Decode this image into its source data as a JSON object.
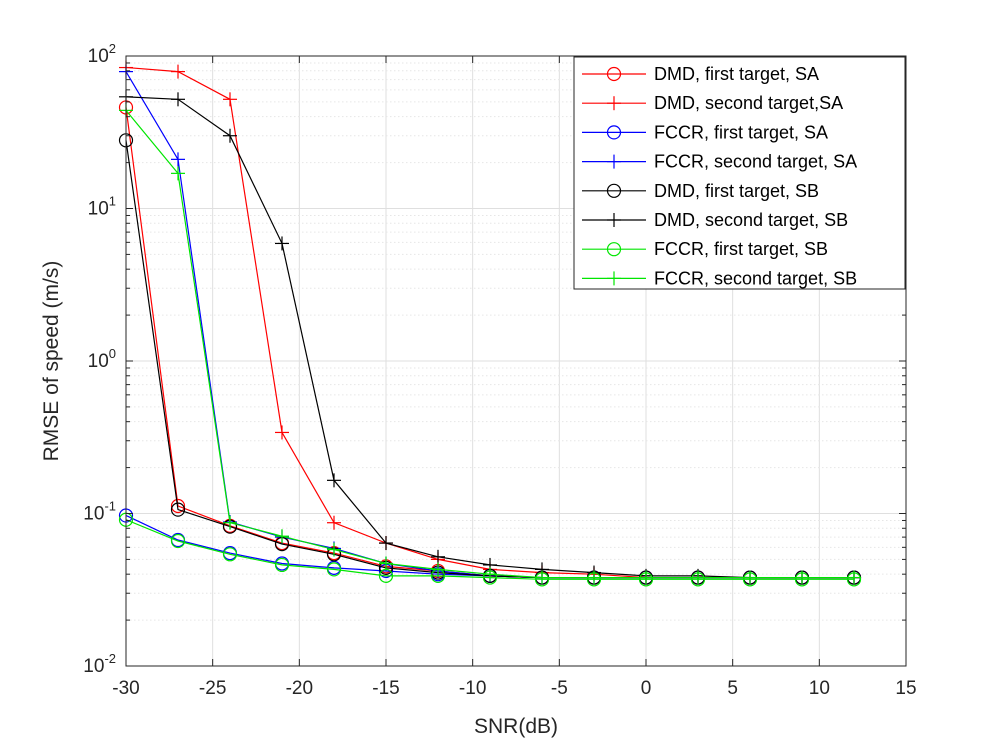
{
  "chart_data": {
    "type": "line",
    "title": "",
    "xlabel": "SNR(dB)",
    "ylabel": "RMSE of speed (m/s)",
    "xlim": [
      -30,
      15
    ],
    "ylim": [
      0.01,
      100
    ],
    "yscale": "log",
    "grid": true,
    "legend_position": "top-right",
    "x_ticks": [
      "-30",
      "-25",
      "-20",
      "-15",
      "-10",
      "-5",
      "0",
      "5",
      "10",
      "15"
    ],
    "y_ticks": [
      {
        "base": "10",
        "exp": "-2"
      },
      {
        "base": "10",
        "exp": "-1"
      },
      {
        "base": "10",
        "exp": "0"
      },
      {
        "base": "10",
        "exp": "1"
      },
      {
        "base": "10",
        "exp": "2"
      }
    ],
    "x": [
      -30,
      -27,
      -24,
      -21,
      -18,
      -15,
      -12,
      -9,
      -6,
      -3,
      0,
      3,
      6,
      9,
      12
    ],
    "series": [
      {
        "name": "DMD, first target, SA",
        "color": "#ff0000",
        "marker": "circle",
        "values": [
          46,
          0.112,
          0.083,
          0.064,
          0.055,
          0.045,
          0.042,
          0.039,
          0.038,
          0.038,
          0.038,
          0.038,
          0.038,
          0.038,
          0.038
        ]
      },
      {
        "name": "DMD, second target,SA",
        "color": "#ff0000",
        "marker": "plus",
        "values": [
          84,
          79,
          52,
          0.34,
          0.087,
          0.064,
          0.05,
          0.043,
          0.041,
          0.04,
          0.038,
          0.038,
          0.038,
          0.038,
          0.038
        ]
      },
      {
        "name": "FCCR, first target, SA",
        "color": "#0000ff",
        "marker": "circle",
        "values": [
          0.097,
          0.067,
          0.055,
          0.047,
          0.044,
          0.042,
          0.04,
          0.039,
          0.038,
          0.038,
          0.038,
          0.038,
          0.038,
          0.038,
          0.038
        ]
      },
      {
        "name": "FCCR, second target, SA",
        "color": "#0000ff",
        "marker": "plus",
        "values": [
          79,
          21,
          0.088,
          0.07,
          0.059,
          0.047,
          0.042,
          0.039,
          0.038,
          0.038,
          0.038,
          0.038,
          0.038,
          0.038,
          0.038
        ]
      },
      {
        "name": "DMD, first target, SB",
        "color": "#000000",
        "marker": "circle",
        "values": [
          28,
          0.106,
          0.082,
          0.063,
          0.054,
          0.044,
          0.041,
          0.039,
          0.038,
          0.038,
          0.038,
          0.038,
          0.038,
          0.038,
          0.038
        ]
      },
      {
        "name": "DMD, second target, SB",
        "color": "#000000",
        "marker": "plus",
        "values": [
          54,
          52,
          30,
          5.9,
          0.165,
          0.064,
          0.052,
          0.046,
          0.043,
          0.041,
          0.039,
          0.039,
          0.038,
          0.038,
          0.038
        ]
      },
      {
        "name": "FCCR, first target, SB",
        "color": "#00e600",
        "marker": "circle",
        "values": [
          0.091,
          0.066,
          0.054,
          0.046,
          0.043,
          0.039,
          0.039,
          0.038,
          0.037,
          0.037,
          0.037,
          0.037,
          0.037,
          0.037,
          0.037
        ]
      },
      {
        "name": "FCCR, second target, SB",
        "color": "#00e600",
        "marker": "plus",
        "values": [
          44,
          17,
          0.087,
          0.071,
          0.058,
          0.047,
          0.043,
          0.04,
          0.038,
          0.038,
          0.038,
          0.038,
          0.038,
          0.038,
          0.038
        ]
      }
    ]
  }
}
